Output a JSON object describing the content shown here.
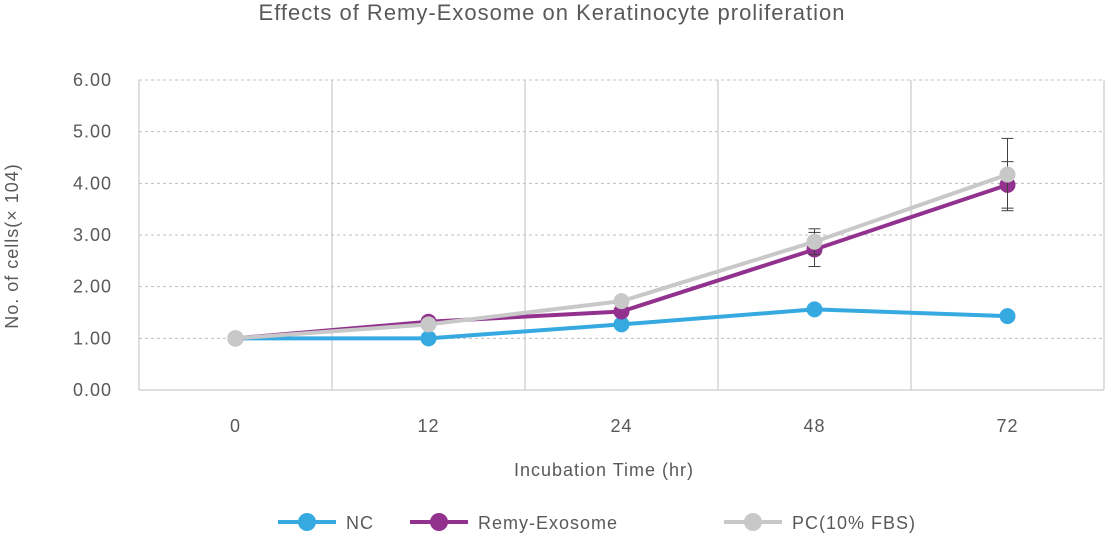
{
  "chart_data": {
    "type": "line",
    "title": "Effects of Remy-Exosome on Keratinocyte proliferation",
    "xlabel": "Incubation Time (hr)",
    "ylabel": "No.  of  cells(× 104)",
    "categories": [
      "0",
      "12",
      "24",
      "48",
      "72"
    ],
    "ylim": [
      0,
      6
    ],
    "yticks": [
      "0.00",
      "1.00",
      "2.00",
      "3.00",
      "4.00",
      "5.00",
      "6.00"
    ],
    "grid": "vertical and horizontal",
    "legend_position": "bottom",
    "series": [
      {
        "name": "NC",
        "color": "#36a9e1",
        "values": [
          1.0,
          1.0,
          1.27,
          1.56,
          1.43
        ],
        "errors": [
          0,
          0,
          0,
          0,
          0
        ]
      },
      {
        "name": "Remy-Exosome",
        "color": "#93328e",
        "values": [
          1.0,
          1.32,
          1.52,
          2.72,
          3.97
        ],
        "errors": [
          0,
          0,
          0,
          0.33,
          0.45
        ]
      },
      {
        "name": "PC(10% FBS)",
        "color": "#c8c8c8",
        "values": [
          1.0,
          1.27,
          1.72,
          2.87,
          4.17
        ],
        "errors": [
          0,
          0,
          0,
          0.25,
          0.7
        ]
      }
    ]
  }
}
